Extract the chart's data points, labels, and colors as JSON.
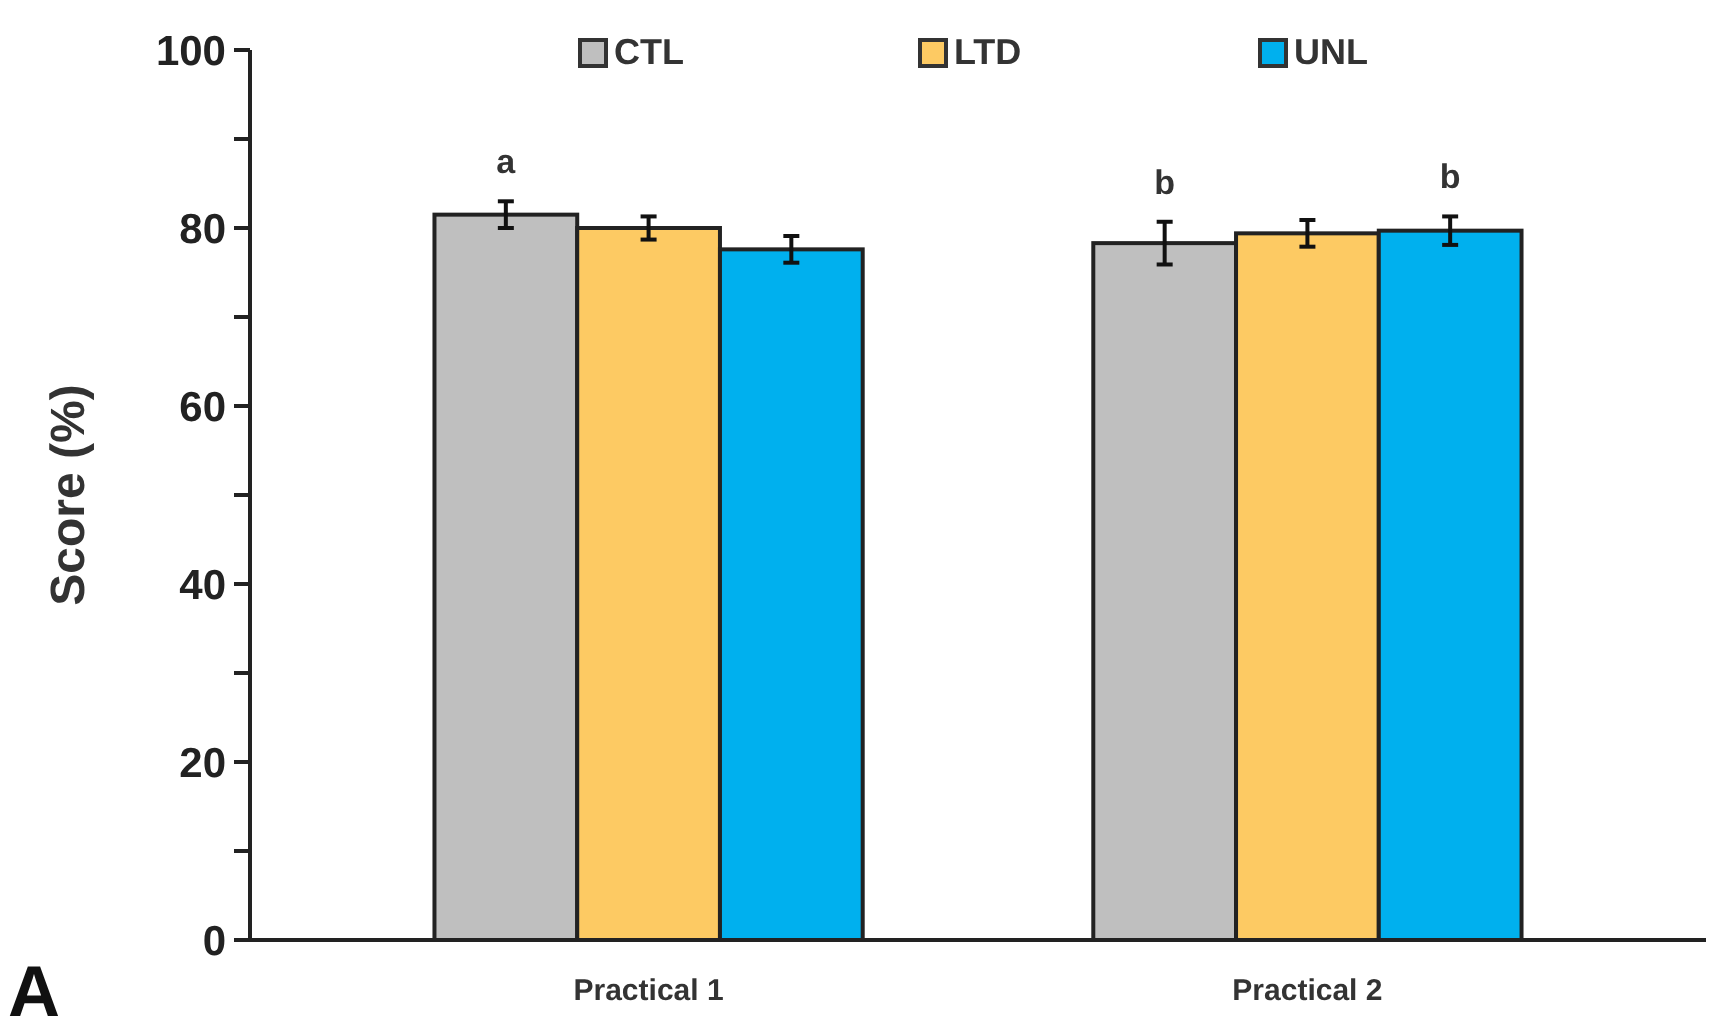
{
  "chart_data": {
    "type": "bar",
    "ylabel": "Score (%)",
    "categories": [
      "Practical 1",
      "Practical 2"
    ],
    "series": [
      {
        "name": "CTL",
        "color": "#bfbfbf",
        "values": [
          81.5,
          78.3
        ],
        "errors": [
          1.5,
          2.4
        ],
        "value_labels": [
          "a",
          "b"
        ]
      },
      {
        "name": "LTD",
        "color": "#fdca63",
        "values": [
          80.0,
          79.4
        ],
        "errors": [
          1.3,
          1.5
        ]
      },
      {
        "name": "UNL",
        "color": "#00b0ee",
        "values": [
          77.6,
          79.7
        ],
        "errors": [
          1.5,
          1.6
        ],
        "value_labels": [
          null,
          "b"
        ]
      }
    ],
    "ylim": [
      0,
      100
    ],
    "yticks": [
      0,
      {
        "value": 10,
        "label": null
      },
      20,
      {
        "value": 30,
        "label": null
      },
      40,
      {
        "value": 50,
        "label": null
      },
      60,
      {
        "value": 70,
        "label": null
      },
      80,
      {
        "value": 90,
        "label": null
      },
      100
    ],
    "legend": "top",
    "grid": false,
    "annotations": [
      "A"
    ]
  }
}
